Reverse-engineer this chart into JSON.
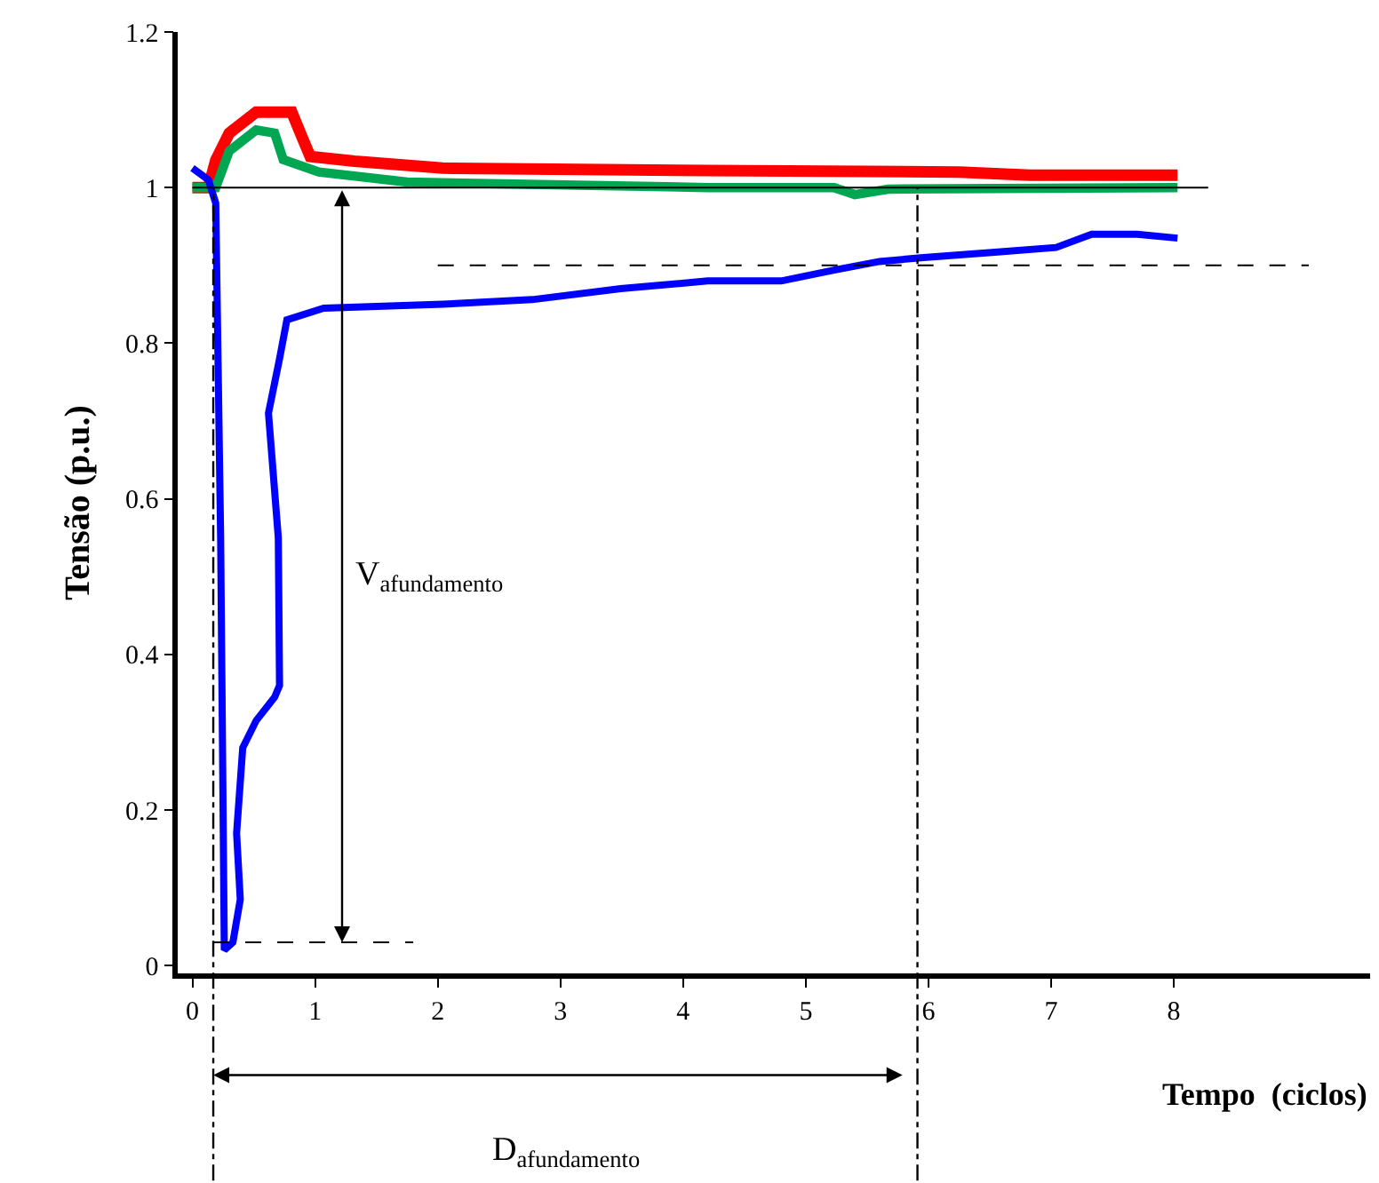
{
  "chart_data": {
    "type": "line",
    "xlabel": "Tempo  (ciclos)",
    "ylabel": "Tensão (p.u.)",
    "xlim": [
      -0.12,
      9.6
    ],
    "ylim": [
      -0.01,
      1.2
    ],
    "xticks": [
      0,
      1,
      2,
      3,
      4,
      5,
      6,
      7,
      8
    ],
    "yticks": [
      0,
      0.2,
      0.4,
      0.6,
      0.8,
      1,
      1.2
    ],
    "marker": "none",
    "line_style": "solid",
    "annotations": [
      "V$_{afundamento}$",
      "D$_{afundamento}$"
    ],
    "ref_lines": [
      {
        "axis": "y",
        "value": 1,
        "color": "#000000",
        "line_style": "solid"
      },
      {
        "axis": "y",
        "value": 0.9,
        "color": "#000000",
        "line_style": "dashed"
      },
      {
        "axis": "y",
        "value": 0.03,
        "color": "#000000",
        "line_style": "dashed"
      },
      {
        "axis": "x",
        "value": 0.17,
        "color": "#000000",
        "line_style": "dashdot"
      },
      {
        "axis": "x",
        "value": 5.91,
        "color": "#000000",
        "line_style": "dashdot"
      }
    ],
    "series": [
      {
        "color": "#ff0000",
        "x": [
          0,
          0.13,
          0.19,
          0.3,
          0.52,
          0.81,
          0.88,
          0.96,
          1.32,
          2.04,
          4.2,
          6.25,
          6.83,
          8.03
        ],
        "values": [
          1.0,
          1.0,
          1.035,
          1.07,
          1.097,
          1.097,
          1.07,
          1.04,
          1.034,
          1.025,
          1.022,
          1.02,
          1.016,
          1.016
        ]
      },
      {
        "color": "#00a651",
        "x": [
          0,
          0.19,
          0.3,
          0.52,
          0.67,
          0.74,
          1.03,
          1.75,
          4.2,
          5.23,
          5.4,
          5.67,
          8.03
        ],
        "values": [
          1.0,
          1.0,
          1.047,
          1.074,
          1.07,
          1.036,
          1.02,
          1.007,
          1.0,
          1.0,
          0.991,
          0.998,
          1.0
        ]
      },
      {
        "color": "#0000ff",
        "x": [
          0,
          0.13,
          0.19,
          0.23,
          0.26,
          0.33,
          0.39,
          0.36,
          0.41,
          0.52,
          0.67,
          0.71,
          0.7,
          0.62,
          0.71,
          0.77,
          1.07,
          2.04,
          2.77,
          3.49,
          4.2,
          4.8,
          5.23,
          5.6,
          5.96,
          6.54,
          7.04,
          7.33,
          7.7,
          8.03
        ],
        "values": [
          1.025,
          1.01,
          0.98,
          0.55,
          0.02,
          0.03,
          0.085,
          0.17,
          0.28,
          0.315,
          0.345,
          0.36,
          0.55,
          0.71,
          0.78,
          0.83,
          0.845,
          0.85,
          0.856,
          0.87,
          0.88,
          0.88,
          0.894,
          0.905,
          0.91,
          0.917,
          0.923,
          0.94,
          0.94,
          0.935
        ]
      }
    ]
  }
}
